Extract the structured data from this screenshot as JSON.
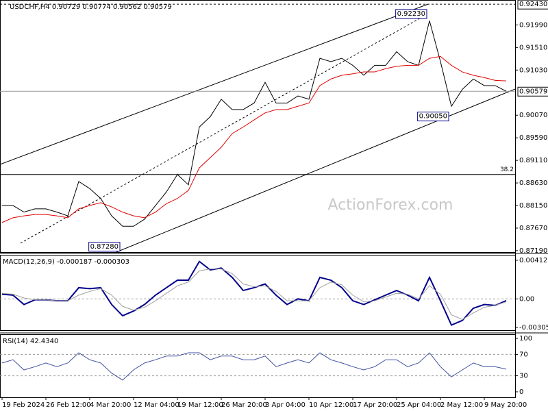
{
  "chart_data": [
    {
      "type": "line",
      "title": "USDCHF,H4 0.90729 0.90774 0.90562 0.90579",
      "watermark": "ActionForex.com",
      "series": [
        {
          "name": "Close",
          "color": "#000000",
          "values": [
            0.8815,
            0.8815,
            0.8801,
            0.8808,
            0.8808,
            0.8801,
            0.8793,
            0.8866,
            0.8851,
            0.883,
            0.8793,
            0.8771,
            0.8771,
            0.8786,
            0.8815,
            0.8844,
            0.8881,
            0.8859,
            0.8982,
            0.9004,
            0.9041,
            0.9019,
            0.9019,
            0.9033,
            0.9077,
            0.9033,
            0.9033,
            0.9048,
            0.9041,
            0.9128,
            0.9121,
            0.9128,
            0.9113,
            0.9092,
            0.9113,
            0.9113,
            0.9142,
            0.9121,
            0.9113,
            0.9208,
            0.9121,
            0.9026,
            0.9062,
            0.9084,
            0.907,
            0.907,
            0.9058
          ]
        },
        {
          "name": "MA",
          "color": "#e00000",
          "values": [
            0.8779,
            0.8789,
            0.8793,
            0.8796,
            0.8796,
            0.8793,
            0.8789,
            0.8808,
            0.8815,
            0.8821,
            0.8812,
            0.8801,
            0.8793,
            0.8789,
            0.8801,
            0.8819,
            0.883,
            0.8847,
            0.8895,
            0.8917,
            0.8939,
            0.8968,
            0.8982,
            0.8997,
            0.9012,
            0.9019,
            0.9019,
            0.9026,
            0.9033,
            0.907,
            0.9084,
            0.9092,
            0.9095,
            0.9099,
            0.9099,
            0.9106,
            0.9111,
            0.9113,
            0.9113,
            0.9128,
            0.9132,
            0.9113,
            0.9099,
            0.9092,
            0.9087,
            0.9081,
            0.908
          ]
        }
      ],
      "ylim": [
        0.8716,
        0.9252
      ],
      "yticks": [
        {
          "value": 0.9199,
          "label": "0.91990"
        },
        {
          "value": 0.9151,
          "label": "0.91510"
        },
        {
          "value": 0.9103,
          "label": "0.91030"
        },
        {
          "value": 0.9007,
          "label": "0.90070"
        },
        {
          "value": 0.8959,
          "label": "0.89590"
        },
        {
          "value": 0.8911,
          "label": "0.89110"
        },
        {
          "value": 0.8863,
          "label": "0.88630"
        },
        {
          "value": 0.8815,
          "label": "0.88150"
        },
        {
          "value": 0.8767,
          "label": "0.87670"
        },
        {
          "value": 0.8719,
          "label": "0.87190"
        }
      ],
      "last_price": 0.90579,
      "resistance": {
        "value": 0.9243,
        "label": "0.92430"
      },
      "fib_level": {
        "value": 0.8881,
        "label": "38.2"
      },
      "annotations": [
        {
          "value": 0.9223,
          "label": "0.92230",
          "x": 39
        },
        {
          "value": 0.9005,
          "label": "0.90050",
          "x": 41
        },
        {
          "value": 0.8728,
          "label": "0.87280",
          "x": 11
        }
      ]
    },
    {
      "type": "line",
      "title": "MACD(12,26,9) -0.000187 -0.000303",
      "series": [
        {
          "name": "MACD",
          "color": "#00008b",
          "values": [
            0.0005,
            0.0004,
            -0.0006,
            -0.0001,
            -0.0001,
            -0.0002,
            -0.0002,
            0.0012,
            0.0011,
            0.0012,
            -0.0006,
            -0.0018,
            -0.0013,
            -0.0006,
            0.0004,
            0.0012,
            0.002,
            0.002,
            0.004,
            0.0031,
            0.0033,
            0.0023,
            0.0009,
            0.0012,
            0.0016,
            0.0004,
            -0.0006,
            0,
            -0.0002,
            0.0023,
            0.002,
            0.0012,
            -0.0002,
            -0.0006,
            -0.0001,
            0.0004,
            0.0009,
            0.0004,
            -0.0002,
            0.0023,
            -0.0002,
            -0.0028,
            -0.0023,
            -0.001,
            -0.0006,
            -0.0007,
            -0.000187
          ]
        },
        {
          "name": "Signal",
          "color": "#a0a0a0",
          "values": [
            0.0006,
            0.0005,
            0.0001,
            -0.0001,
            -0.0001,
            -0.0002,
            -0.0002,
            0.0004,
            0.0008,
            0.0011,
            0.0004,
            -0.0008,
            -0.0012,
            -0.0009,
            -0.0002,
            0.0006,
            0.0014,
            0.0018,
            0.003,
            0.0032,
            0.0032,
            0.0027,
            0.0016,
            0.0013,
            0.0014,
            0.0008,
            -0.0002,
            -0.0002,
            -0.0002,
            0.0012,
            0.0018,
            0.0015,
            0.0004,
            -0.0003,
            -0.0002,
            0.0002,
            0.0006,
            0.0005,
            0,
            0.0014,
            0.0005,
            -0.0017,
            -0.0022,
            -0.0015,
            -0.0009,
            -0.0007,
            -0.000303
          ]
        }
      ],
      "ylim": [
        -0.003344,
        0.004713
      ],
      "yticks": [
        0.004127,
        {
          "value": 0,
          "label": "0.00"
        },
        -0.003051
      ]
    },
    {
      "type": "line",
      "title": "RSI(14) 42.4340",
      "categories": [
        "19 Feb 2024",
        null,
        null,
        null,
        "26 Feb 12:00",
        null,
        null,
        null,
        "4 Mar 20:00",
        null,
        null,
        null,
        "12 Mar 04:00",
        null,
        null,
        null,
        "19 Mar 12:00",
        null,
        null,
        null,
        "26 Mar 20:00",
        null,
        null,
        null,
        "3 Apr 04:00",
        null,
        null,
        null,
        "10 Apr 12:00",
        null,
        null,
        null,
        "17 Apr 20:00",
        null,
        null,
        null,
        "25 Apr 04:00",
        null,
        null,
        null,
        "2 May 12:00",
        null,
        null,
        null,
        "9 May 20:00",
        null,
        null
      ],
      "series": [
        {
          "name": "RSI",
          "color": "#4050a0",
          "values": [
            54,
            60,
            41,
            47,
            54,
            47,
            54,
            73,
            60,
            54,
            35,
            22,
            41,
            54,
            60,
            67,
            67,
            73,
            73,
            60,
            67,
            67,
            60,
            60,
            67,
            47,
            54,
            60,
            54,
            73,
            60,
            54,
            47,
            41,
            47,
            60,
            60,
            47,
            54,
            73,
            47,
            28,
            41,
            54,
            47,
            47,
            42.434
          ]
        }
      ],
      "ylim": [
        -10.3,
        107.7
      ],
      "yticks": [
        100,
        70,
        30,
        0
      ]
    }
  ]
}
